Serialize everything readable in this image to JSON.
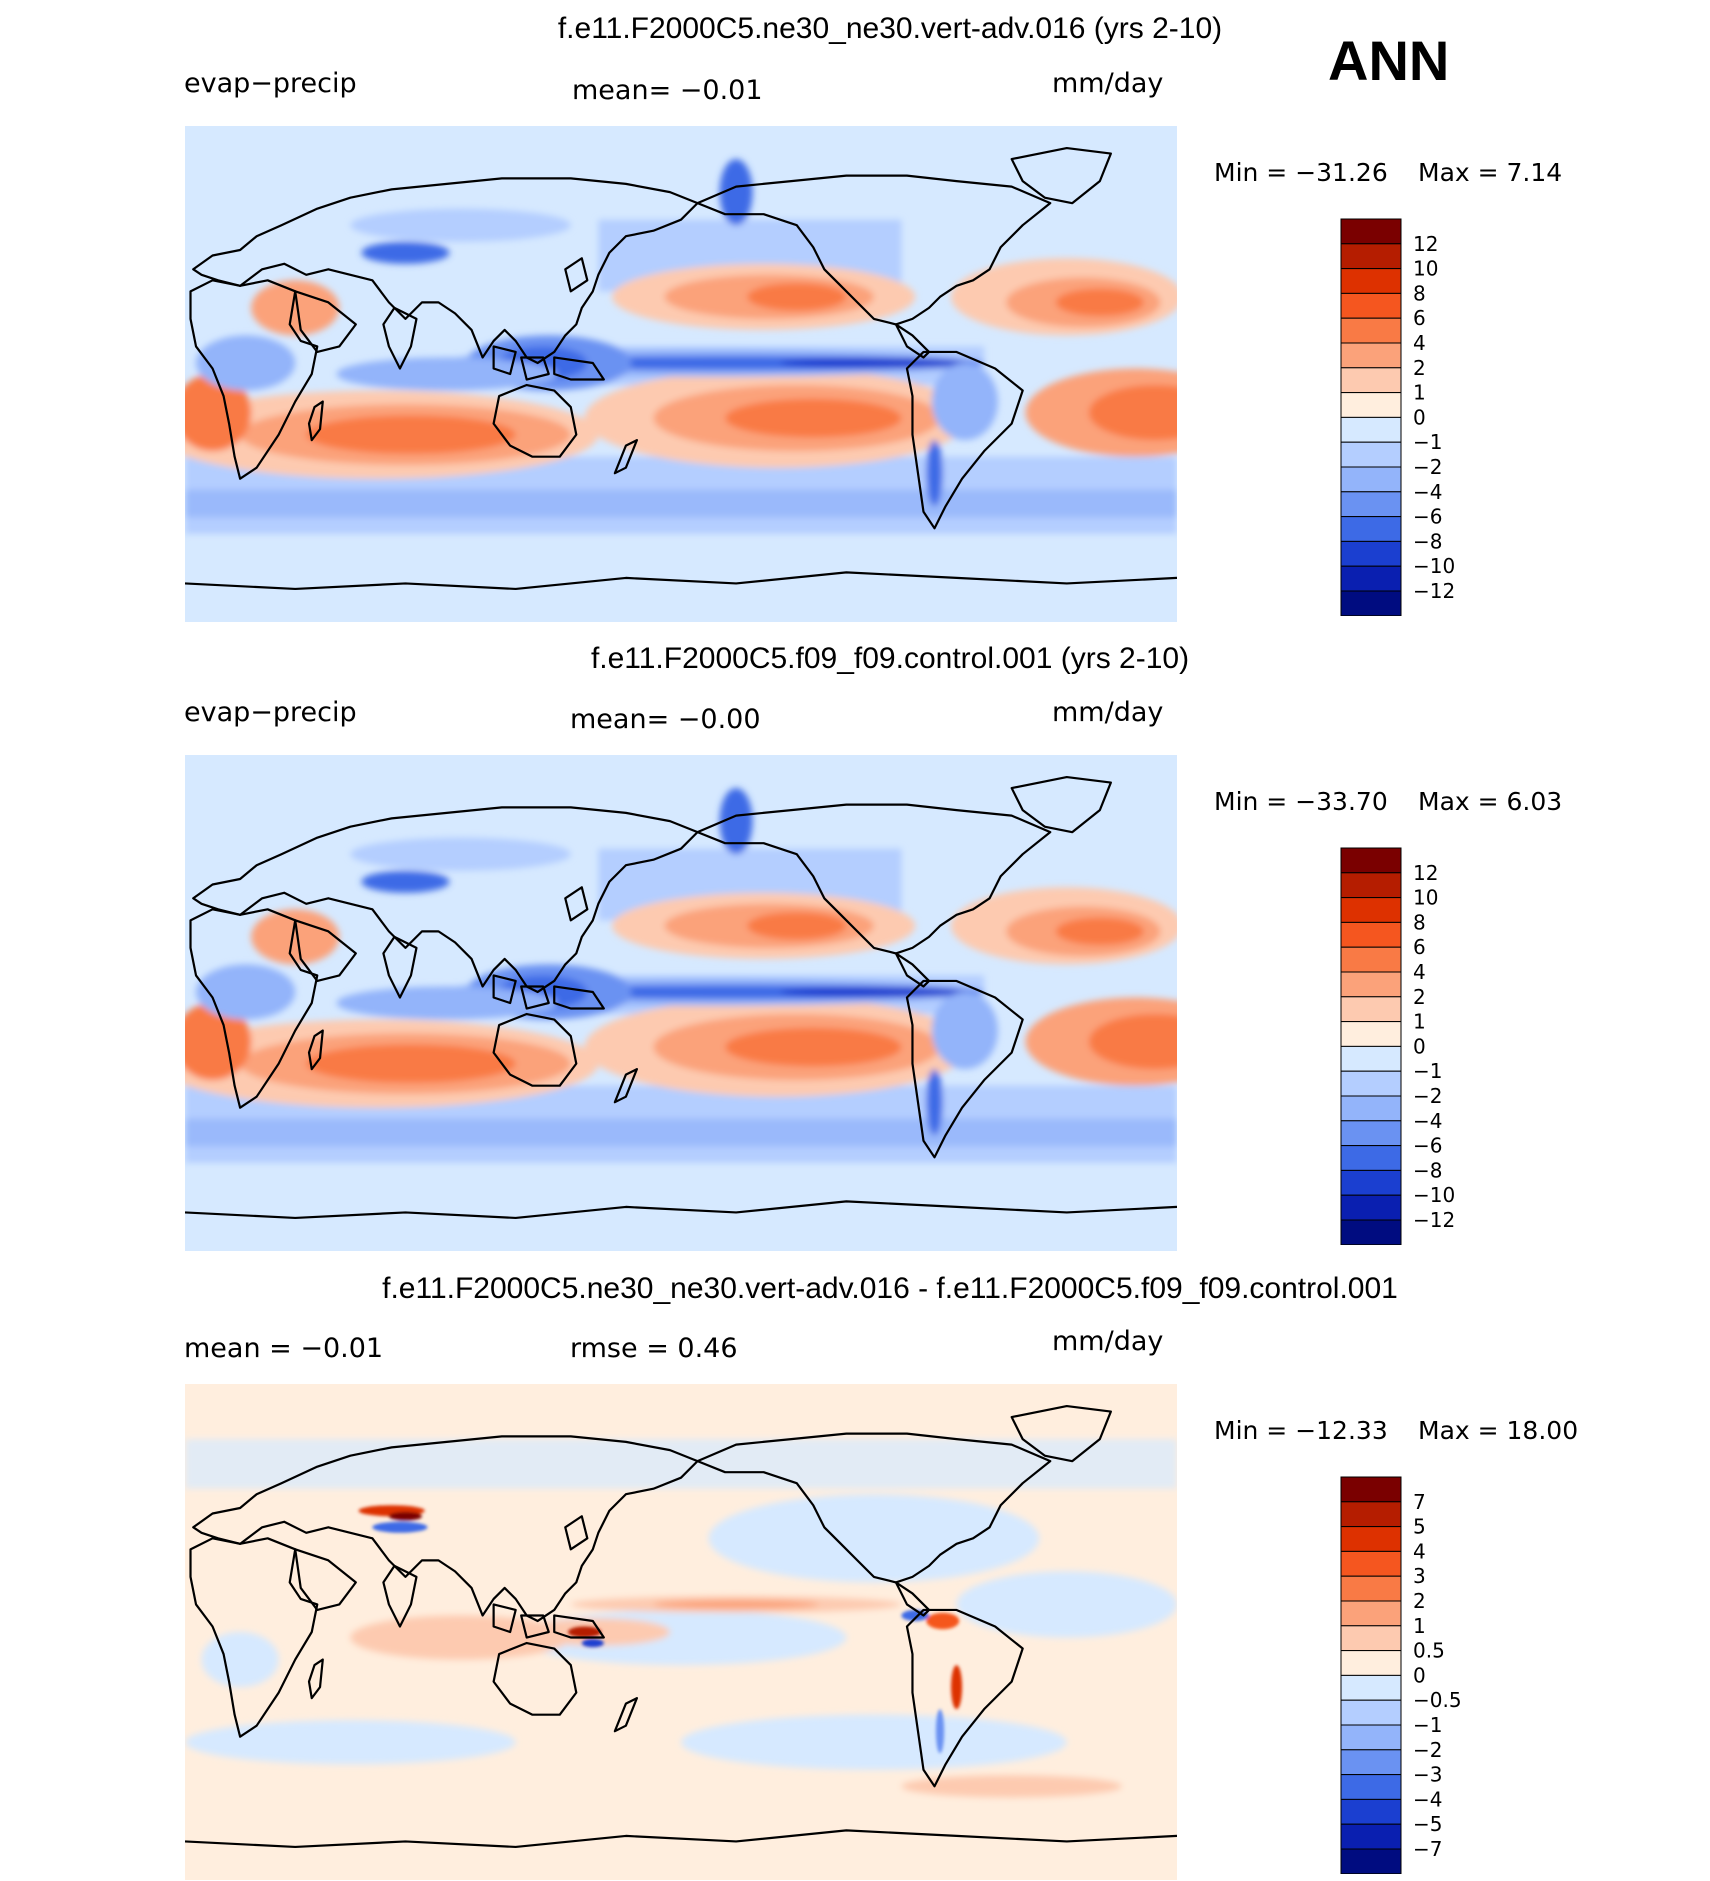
{
  "season": "ANN",
  "panels": [
    {
      "title": "f.e11.F2000C5.ne30_ne30.vert-adv.016 (yrs 2-10)",
      "left_label": "evap−precip",
      "center_label": "mean=   −0.01",
      "right_label": "mm/day",
      "min_label": "Min  =  −31.26",
      "max_label": "Max  =     7.14"
    },
    {
      "title": "f.e11.F2000C5.f09_f09.control.001 (yrs 2-10)",
      "left_label": "evap−precip",
      "center_label": "mean=   −0.00",
      "right_label": "mm/day",
      "min_label": "Min  =  −33.70",
      "max_label": "Max  =     6.03"
    },
    {
      "title": "f.e11.F2000C5.ne30_ne30.vert-adv.016 - f.e11.F2000C5.f09_f09.control.001",
      "left_label": "mean  =   −0.01",
      "center_label": "rmse  =    0.46",
      "right_label": "mm/day",
      "min_label": "Min  =  −12.33",
      "max_label": "Max  =    18.00"
    }
  ],
  "chart_data": [
    {
      "type": "heatmap",
      "title": "f.e11.F2000C5.ne30_ne30.vert-adv.016 (yrs 2-10)",
      "variable": "evap−precip",
      "units": "mm/day",
      "mean": -0.01,
      "min": -31.26,
      "max": 7.14,
      "colorbar_levels": [
        "12",
        "10",
        "8",
        "6",
        "4",
        "2",
        "1",
        "0",
        "−1",
        "−2",
        "−4",
        "−6",
        "−8",
        "−10",
        "−12"
      ],
      "colorbar_colors": [
        "#7a0000",
        "#b51d00",
        "#dd3100",
        "#f5561f",
        "#f97a45",
        "#fba27a",
        "#fdcab0",
        "#ffeede",
        "#d6e9ff",
        "#b4ceff",
        "#93b4fa",
        "#6a92f2",
        "#3d6ae6",
        "#1b3fd0",
        "#0a1fb0",
        "#000c80"
      ]
    },
    {
      "type": "heatmap",
      "title": "f.e11.F2000C5.f09_f09.control.001 (yrs 2-10)",
      "variable": "evap−precip",
      "units": "mm/day",
      "mean": 0.0,
      "min": -33.7,
      "max": 6.03,
      "colorbar_levels": [
        "12",
        "10",
        "8",
        "6",
        "4",
        "2",
        "1",
        "0",
        "−1",
        "−2",
        "−4",
        "−6",
        "−8",
        "−10",
        "−12"
      ],
      "colorbar_colors": [
        "#7a0000",
        "#b51d00",
        "#dd3100",
        "#f5561f",
        "#f97a45",
        "#fba27a",
        "#fdcab0",
        "#ffeede",
        "#d6e9ff",
        "#b4ceff",
        "#93b4fa",
        "#6a92f2",
        "#3d6ae6",
        "#1b3fd0",
        "#0a1fb0",
        "#000c80"
      ]
    },
    {
      "type": "heatmap",
      "title": "f.e11.F2000C5.ne30_ne30.vert-adv.016 - f.e11.F2000C5.f09_f09.control.001",
      "units": "mm/day",
      "mean": -0.01,
      "rmse": 0.46,
      "min": -12.33,
      "max": 18.0,
      "colorbar_levels": [
        "7",
        "5",
        "4",
        "3",
        "2",
        "1",
        "0.5",
        "0",
        "−0.5",
        "−1",
        "−2",
        "−3",
        "−4",
        "−5",
        "−7"
      ],
      "colorbar_colors": [
        "#7a0000",
        "#b51d00",
        "#dd3100",
        "#f5561f",
        "#f97a45",
        "#fba27a",
        "#fdcab0",
        "#ffeede",
        "#d6e9ff",
        "#b4ceff",
        "#93b4fa",
        "#6a92f2",
        "#3d6ae6",
        "#1b3fd0",
        "#0a1fb0",
        "#000c80"
      ]
    }
  ]
}
